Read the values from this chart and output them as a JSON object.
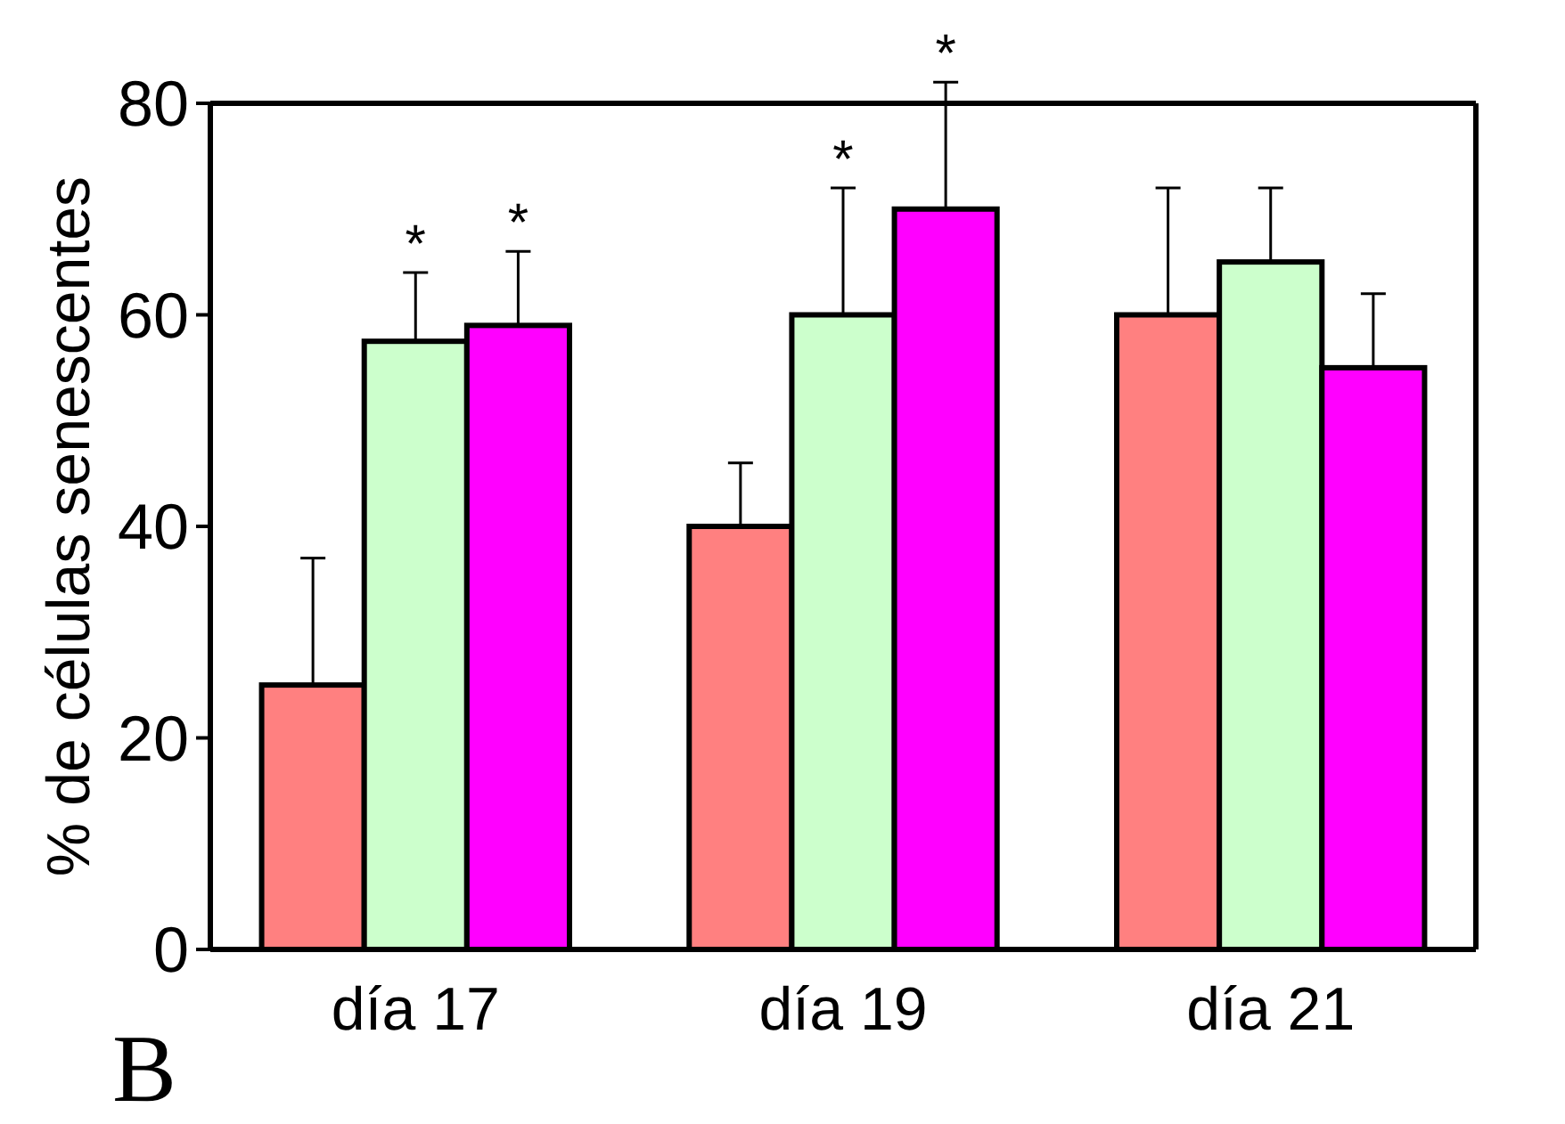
{
  "chart_data": {
    "type": "bar",
    "ylabel": "% de células senescentes",
    "categories": [
      "día 17",
      "día 19",
      "día 21"
    ],
    "series": [
      {
        "color": "#ff8080",
        "values": [
          25,
          40,
          60
        ],
        "errors": [
          [
            25,
            37
          ],
          [
            40,
            46
          ],
          [
            60,
            72
          ]
        ]
      },
      {
        "color": "#ccffcc",
        "values": [
          57.5,
          60,
          65
        ],
        "errors": [
          [
            57.5,
            64
          ],
          [
            60,
            72
          ],
          [
            65,
            72
          ]
        ]
      },
      {
        "color": "#ff00ff",
        "values": [
          59,
          70,
          55
        ],
        "errors": [
          [
            59,
            66
          ],
          [
            70,
            82
          ],
          [
            55,
            62
          ]
        ]
      }
    ],
    "ylim": [
      0,
      80
    ],
    "yticks": [
      0,
      20,
      40,
      60,
      80
    ],
    "grid": false,
    "annotations": [
      {
        "text": "*",
        "x": "día 17",
        "y": 57.5
      },
      {
        "text": "*",
        "x": "día 17",
        "y": 59
      },
      {
        "text": "*",
        "x": "día 19",
        "y": 60
      },
      {
        "text": "*",
        "x": "día 19",
        "y": 70
      },
      "B"
    ]
  }
}
